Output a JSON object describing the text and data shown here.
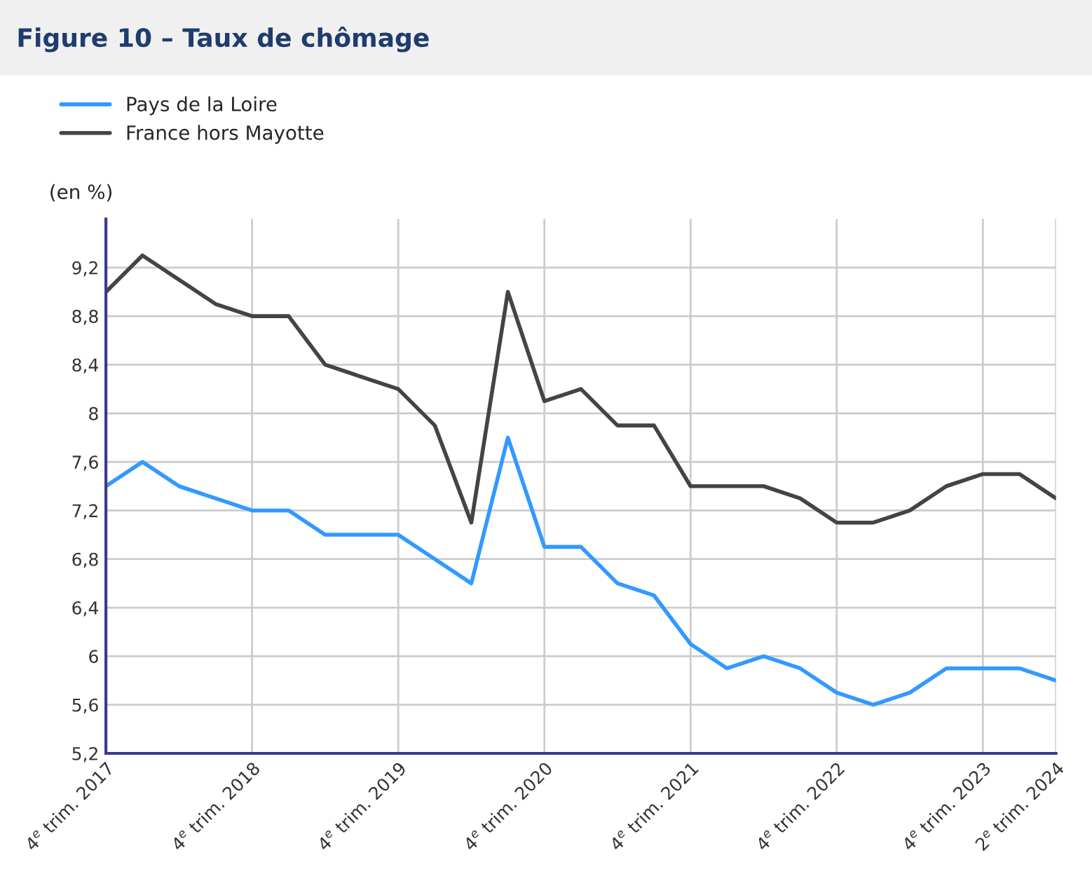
{
  "chart_data": {
    "type": "line",
    "title": "Figure 10 – Taux de chômage",
    "ylabel": "(en %)",
    "categories": [
      "4$^{e}$ trim. 2017",
      null,
      null,
      null,
      "4$^{e}$ trim. 2018",
      null,
      null,
      null,
      "4$^{e}$ trim. 2019",
      null,
      null,
      null,
      "4$^{e}$ trim. 2020",
      null,
      null,
      null,
      "4$^{e}$ trim. 2021",
      null,
      null,
      null,
      "4$^{e}$ trim. 2022",
      null,
      null,
      null,
      "4$^{e}$ trim. 2023",
      null,
      "2$^{e}$ trim. 2024"
    ],
    "series": [
      {
        "name": "Pays de la Loire",
        "color": "#3399ff",
        "values": [
          7.4,
          7.6,
          7.4,
          7.3,
          7.2,
          7.2,
          7.0,
          7.0,
          7.0,
          6.8,
          6.6,
          7.8,
          6.9,
          6.9,
          6.6,
          6.5,
          6.1,
          5.9,
          6.0,
          5.9,
          5.7,
          5.6,
          5.7,
          5.9,
          5.9,
          5.9,
          5.8
        ]
      },
      {
        "name": "France hors Mayotte",
        "color": "#444444",
        "values": [
          9.0,
          9.3,
          9.1,
          8.9,
          8.8,
          8.8,
          8.4,
          8.3,
          8.2,
          7.9,
          7.1,
          9.0,
          8.1,
          8.2,
          7.9,
          7.9,
          7.4,
          7.4,
          7.4,
          7.3,
          7.1,
          7.1,
          7.2,
          7.4,
          7.5,
          7.5,
          7.3
        ]
      }
    ],
    "ylim": [
      5.2,
      9.6
    ],
    "yticks": [
      {
        "value": 5.2,
        "label": "5,2"
      },
      {
        "value": 5.6,
        "label": "5,6"
      },
      6,
      {
        "value": 6.4,
        "label": "6,4"
      },
      {
        "value": 6.8,
        "label": "6,8"
      },
      {
        "value": 7.2,
        "label": "7,2"
      },
      {
        "value": 7.6,
        "label": "7,6"
      },
      8,
      {
        "value": 8.4,
        "label": "8,4"
      },
      {
        "value": 8.8,
        "label": "8,8"
      },
      {
        "value": 9.2,
        "label": "9,2"
      }
    ],
    "grid": true,
    "legend": "top left",
    "marker": "none",
    "line_style": "solid"
  }
}
